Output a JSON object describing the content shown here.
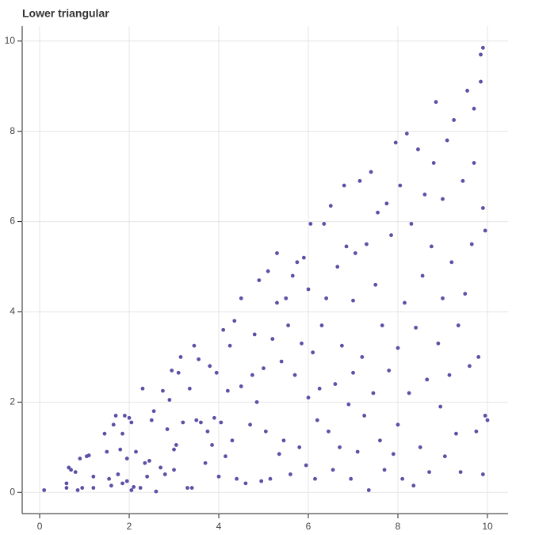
{
  "chart_data": {
    "type": "scatter",
    "title": "Lower triangular",
    "color": "#5a50a5",
    "grid": true,
    "xlim": [
      -0.39,
      10.46
    ],
    "ylim": [
      -0.47,
      10.33
    ],
    "xticks": [
      0,
      2,
      4,
      6,
      8,
      10
    ],
    "yticks": [
      0,
      2,
      4,
      6,
      8,
      10
    ],
    "x": [
      0.1,
      0.6,
      0.6,
      0.65,
      0.7,
      0.8,
      0.85,
      0.9,
      0.95,
      1.05,
      1.1,
      1.2,
      1.2,
      1.45,
      1.5,
      1.55,
      1.6,
      1.65,
      1.7,
      1.75,
      1.8,
      1.85,
      1.85,
      1.9,
      1.95,
      1.95,
      2.0,
      2.05,
      2.05,
      2.15,
      2.1,
      2.25,
      2.3,
      2.35,
      2.4,
      2.45,
      2.5,
      2.55,
      2.6,
      2.7,
      2.75,
      2.8,
      2.85,
      2.9,
      2.95,
      3.0,
      3.0,
      3.05,
      3.1,
      3.15,
      3.2,
      3.3,
      3.35,
      3.4,
      3.45,
      3.5,
      3.55,
      3.6,
      3.7,
      3.75,
      3.8,
      3.85,
      3.9,
      3.95,
      4.0,
      4.05,
      4.1,
      4.15,
      4.2,
      4.25,
      4.3,
      4.35,
      4.4,
      4.5,
      4.5,
      4.6,
      4.7,
      4.75,
      4.8,
      4.85,
      4.9,
      4.95,
      5.0,
      5.05,
      5.1,
      5.15,
      5.2,
      5.3,
      5.3,
      5.35,
      5.4,
      5.45,
      5.5,
      5.55,
      5.6,
      5.65,
      5.7,
      5.75,
      5.8,
      5.85,
      5.9,
      5.95,
      6.0,
      6.0,
      6.05,
      6.1,
      6.15,
      6.2,
      6.25,
      6.3,
      6.35,
      6.4,
      6.45,
      6.5,
      6.55,
      6.6,
      6.65,
      6.7,
      6.75,
      6.8,
      6.85,
      6.9,
      6.95,
      7.0,
      7.0,
      7.05,
      7.1,
      7.15,
      7.2,
      7.25,
      7.3,
      7.35,
      7.4,
      7.45,
      7.5,
      7.55,
      7.6,
      7.65,
      7.7,
      7.75,
      7.8,
      7.85,
      7.9,
      7.95,
      8.0,
      8.0,
      8.05,
      8.1,
      8.15,
      8.2,
      8.25,
      8.3,
      8.35,
      8.4,
      8.45,
      8.5,
      8.55,
      8.6,
      8.65,
      8.7,
      8.75,
      8.8,
      8.85,
      8.9,
      8.95,
      9.0,
      9.0,
      9.05,
      9.1,
      9.15,
      9.2,
      9.25,
      9.3,
      9.35,
      9.4,
      9.45,
      9.5,
      9.55,
      9.6,
      9.65,
      9.7,
      9.75,
      9.8,
      9.85,
      9.85,
      9.9,
      9.9,
      9.95,
      9.95,
      10.0,
      9.9,
      9.7
    ],
    "values": [
      0.05,
      0.2,
      0.1,
      0.55,
      0.5,
      0.45,
      0.05,
      0.75,
      0.1,
      0.8,
      0.82,
      0.35,
      0.1,
      1.3,
      0.9,
      0.3,
      0.15,
      1.5,
      1.7,
      0.4,
      0.95,
      1.3,
      0.2,
      1.7,
      0.75,
      0.25,
      1.65,
      1.55,
      0.05,
      0.9,
      0.12,
      0.1,
      2.3,
      0.65,
      0.35,
      0.7,
      1.6,
      1.8,
      0.02,
      0.55,
      2.25,
      0.4,
      1.4,
      2.05,
      2.7,
      0.5,
      0.95,
      1.05,
      2.65,
      3.0,
      1.55,
      0.1,
      2.3,
      0.1,
      3.25,
      1.6,
      2.95,
      1.55,
      0.65,
      1.35,
      2.8,
      1.05,
      1.65,
      2.65,
      0.35,
      1.55,
      3.6,
      0.8,
      2.25,
      3.25,
      1.15,
      3.8,
      0.3,
      4.3,
      2.35,
      0.2,
      1.5,
      2.6,
      3.5,
      2.0,
      4.7,
      0.25,
      2.75,
      1.35,
      4.9,
      0.3,
      3.4,
      5.3,
      4.2,
      0.85,
      2.9,
      1.15,
      4.3,
      3.7,
      0.4,
      4.8,
      2.6,
      5.1,
      1.0,
      3.3,
      5.2,
      0.6,
      2.1,
      4.5,
      5.95,
      3.1,
      0.3,
      1.6,
      2.3,
      3.7,
      5.95,
      4.3,
      1.35,
      6.35,
      0.5,
      2.4,
      5.0,
      1.0,
      3.25,
      6.8,
      5.45,
      1.95,
      0.3,
      4.25,
      2.65,
      5.3,
      0.9,
      6.9,
      3.0,
      1.7,
      5.5,
      0.05,
      7.1,
      2.2,
      4.6,
      6.2,
      1.15,
      3.7,
      0.5,
      6.4,
      2.7,
      5.7,
      0.85,
      7.75,
      3.2,
      1.5,
      6.8,
      0.3,
      4.2,
      7.95,
      2.2,
      5.95,
      0.15,
      3.65,
      7.6,
      1.0,
      4.8,
      6.6,
      2.5,
      0.45,
      5.45,
      7.3,
      8.65,
      3.3,
      1.9,
      6.5,
      4.3,
      0.8,
      7.8,
      2.6,
      5.1,
      8.25,
      1.3,
      3.7,
      0.45,
      6.9,
      4.4,
      8.9,
      2.8,
      5.5,
      7.3,
      1.35,
      3.0,
      9.1,
      9.7,
      9.85,
      6.3,
      1.7,
      5.8,
      1.6,
      0.4,
      8.5
    ]
  }
}
